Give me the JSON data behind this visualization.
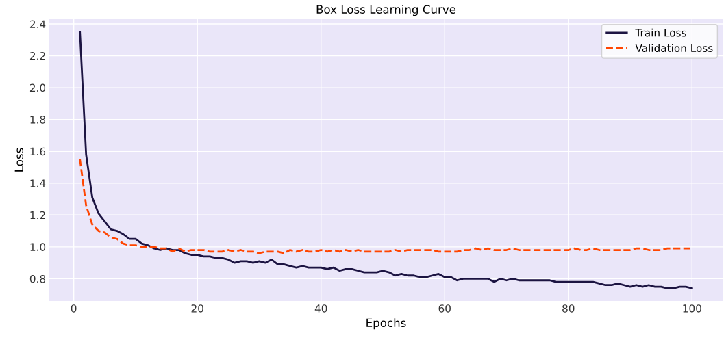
{
  "chart_data": {
    "type": "line",
    "title": "Box Loss Learning Curve",
    "xlabel": "Epochs",
    "ylabel": "Loss",
    "x": [
      1,
      2,
      3,
      4,
      5,
      6,
      7,
      8,
      9,
      10,
      11,
      12,
      13,
      14,
      15,
      16,
      17,
      18,
      19,
      20,
      21,
      22,
      23,
      24,
      25,
      26,
      27,
      28,
      29,
      30,
      31,
      32,
      33,
      34,
      35,
      36,
      37,
      38,
      39,
      40,
      41,
      42,
      43,
      44,
      45,
      46,
      47,
      48,
      49,
      50,
      51,
      52,
      53,
      54,
      55,
      56,
      57,
      58,
      59,
      60,
      61,
      62,
      63,
      64,
      65,
      66,
      67,
      68,
      69,
      70,
      71,
      72,
      73,
      74,
      75,
      76,
      77,
      78,
      79,
      80,
      81,
      82,
      83,
      84,
      85,
      86,
      87,
      88,
      89,
      90,
      91,
      92,
      93,
      94,
      95,
      96,
      97,
      98,
      99,
      100
    ],
    "series": [
      {
        "name": "Train Loss",
        "color": "#1c1442",
        "line_style": "solid",
        "values": [
          2.35,
          1.58,
          1.31,
          1.21,
          1.16,
          1.11,
          1.1,
          1.08,
          1.05,
          1.05,
          1.02,
          1.01,
          0.99,
          0.98,
          0.99,
          0.98,
          0.98,
          0.96,
          0.95,
          0.95,
          0.94,
          0.94,
          0.93,
          0.93,
          0.92,
          0.9,
          0.91,
          0.91,
          0.9,
          0.91,
          0.9,
          0.92,
          0.89,
          0.89,
          0.88,
          0.87,
          0.88,
          0.87,
          0.87,
          0.87,
          0.86,
          0.87,
          0.85,
          0.86,
          0.86,
          0.85,
          0.84,
          0.84,
          0.84,
          0.85,
          0.84,
          0.82,
          0.83,
          0.82,
          0.82,
          0.81,
          0.81,
          0.82,
          0.83,
          0.81,
          0.81,
          0.79,
          0.8,
          0.8,
          0.8,
          0.8,
          0.8,
          0.78,
          0.8,
          0.79,
          0.8,
          0.79,
          0.79,
          0.79,
          0.79,
          0.79,
          0.79,
          0.78,
          0.78,
          0.78,
          0.78,
          0.78,
          0.78,
          0.78,
          0.77,
          0.76,
          0.76,
          0.77,
          0.76,
          0.75,
          0.76,
          0.75,
          0.76,
          0.75,
          0.75,
          0.74,
          0.74,
          0.75,
          0.75,
          0.74
        ]
      },
      {
        "name": "Validation Loss",
        "color": "#ff4500",
        "line_style": "dashed",
        "values": [
          1.55,
          1.26,
          1.14,
          1.1,
          1.09,
          1.06,
          1.05,
          1.02,
          1.01,
          1.01,
          1.0,
          1.0,
          1.0,
          0.99,
          0.99,
          0.97,
          0.99,
          0.97,
          0.98,
          0.98,
          0.98,
          0.97,
          0.97,
          0.97,
          0.98,
          0.97,
          0.98,
          0.97,
          0.97,
          0.96,
          0.97,
          0.97,
          0.97,
          0.96,
          0.98,
          0.97,
          0.98,
          0.97,
          0.97,
          0.98,
          0.97,
          0.98,
          0.97,
          0.98,
          0.97,
          0.98,
          0.97,
          0.97,
          0.97,
          0.97,
          0.97,
          0.98,
          0.97,
          0.98,
          0.98,
          0.98,
          0.98,
          0.98,
          0.97,
          0.97,
          0.97,
          0.97,
          0.98,
          0.98,
          0.99,
          0.98,
          0.99,
          0.98,
          0.98,
          0.98,
          0.99,
          0.98,
          0.98,
          0.98,
          0.98,
          0.98,
          0.98,
          0.98,
          0.98,
          0.98,
          0.99,
          0.98,
          0.98,
          0.99,
          0.98,
          0.98,
          0.98,
          0.98,
          0.98,
          0.98,
          0.99,
          0.99,
          0.98,
          0.98,
          0.98,
          0.99,
          0.99,
          0.99,
          0.99,
          0.99
        ]
      }
    ],
    "xlim": [
      -3.95,
      104.95
    ],
    "ylim": [
      0.66,
      2.43
    ],
    "xticks": [
      0,
      20,
      40,
      60,
      80,
      100
    ],
    "yticks": [
      0.8,
      {
        "value": 1,
        "label": "1.0"
      },
      1.2,
      1.4,
      1.6,
      1.8,
      {
        "value": 2,
        "label": "2.0"
      },
      2.2,
      2.4
    ],
    "grid": true,
    "legend": "top right"
  }
}
